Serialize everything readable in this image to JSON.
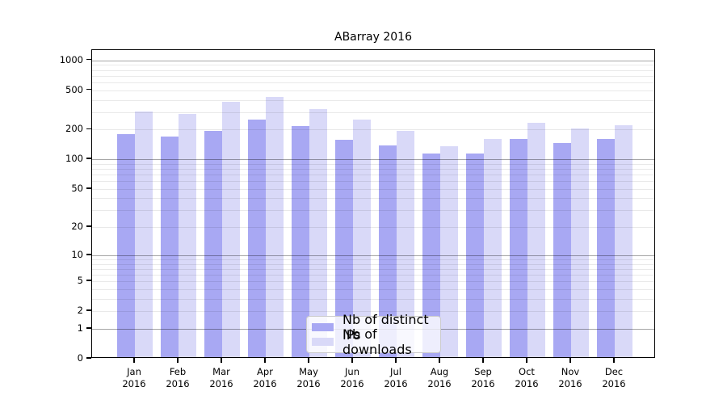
{
  "chart_data": {
    "type": "bar",
    "title": "ABarray 2016",
    "categories": [
      {
        "month": "Jan",
        "year": "2016"
      },
      {
        "month": "Feb",
        "year": "2016"
      },
      {
        "month": "Mar",
        "year": "2016"
      },
      {
        "month": "Apr",
        "year": "2016"
      },
      {
        "month": "May",
        "year": "2016"
      },
      {
        "month": "Jun",
        "year": "2016"
      },
      {
        "month": "Jul",
        "year": "2016"
      },
      {
        "month": "Aug",
        "year": "2016"
      },
      {
        "month": "Sep",
        "year": "2016"
      },
      {
        "month": "Oct",
        "year": "2016"
      },
      {
        "month": "Nov",
        "year": "2016"
      },
      {
        "month": "Dec",
        "year": "2016"
      }
    ],
    "series": [
      {
        "name": "Nb of distinct IPs",
        "color": "#a8a8f3",
        "values": [
          172,
          163,
          187,
          244,
          210,
          153,
          134,
          110,
          111,
          154,
          141,
          156
        ]
      },
      {
        "name": "Nb of downloads",
        "color": "#d9d9f8",
        "values": [
          295,
          280,
          365,
          408,
          310,
          244,
          186,
          130,
          156,
          224,
          197,
          212
        ]
      }
    ],
    "yscale": "log1p",
    "ylim": [
      0,
      1270
    ],
    "yticks": [
      0,
      1,
      2,
      5,
      10,
      20,
      50,
      100,
      200,
      500,
      1000
    ],
    "grid": true,
    "legend_position": "inside-bottom-center",
    "axis_color": "#000000",
    "major_grid_color": "#a6a6a6",
    "minor_grid_color": "#eaeaea"
  }
}
